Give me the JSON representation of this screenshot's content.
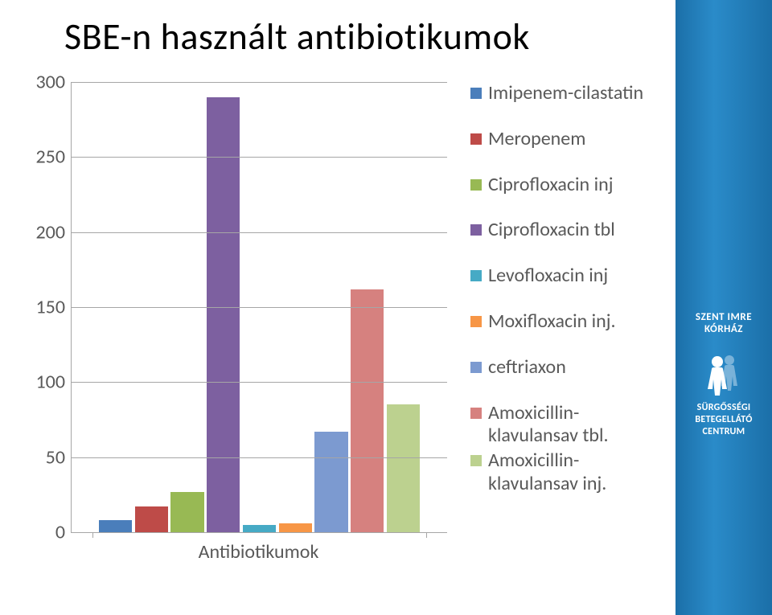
{
  "title": "SBE-n használt antibiotikumok",
  "chart": {
    "type": "bar",
    "x_label": "Antibiotikumok",
    "ylim": [
      0,
      300
    ],
    "ytick_positions": [
      0,
      50,
      100,
      150,
      200,
      250,
      300
    ],
    "ytick_labels": [
      "0",
      "50",
      "100",
      "150",
      "200",
      "250",
      "300"
    ],
    "grid_color": "#a6a6a6",
    "background_color": "#ffffff",
    "label_fontsize": 24,
    "title_fontsize": 46,
    "bar_gap_ratio": 0.08,
    "series": [
      {
        "label": "Imipenem-cilastatin",
        "value": 8,
        "color": "#4a7ebb"
      },
      {
        "label": "Meropenem",
        "value": 17,
        "color": "#be4b48"
      },
      {
        "label": "Ciprofloxacin inj",
        "value": 27,
        "color": "#98b954"
      },
      {
        "label": "Ciprofloxacin tbl",
        "value": 290,
        "color": "#7d60a0"
      },
      {
        "label": "Levofloxacin inj",
        "value": 5,
        "color": "#46aac5"
      },
      {
        "label": "Moxifloxacin inj.",
        "value": 6,
        "color": "#f79646"
      },
      {
        "label": "ceftriaxon",
        "value": 67,
        "color": "#7c9ad0"
      },
      {
        "label": "Amoxicillin-klavulansav tbl.",
        "value": 162,
        "color": "#d6817f"
      },
      {
        "label": "Amoxicillin-klavulansav inj.",
        "value": 85,
        "color": "#bcd18f"
      }
    ]
  },
  "sidebar": {
    "hospital_line1": "SZENT IMRE",
    "hospital_line2": "KÓRHÁZ",
    "unit_line1": "SÜRGŐSSÉGI",
    "unit_line2": "BETEGELLÁTÓ",
    "unit_line3": "CENTRUM",
    "bg_gradient": [
      "#1b6fa8",
      "#2a8bc9",
      "#1b6fa8"
    ],
    "text_color": "#ffffff"
  }
}
